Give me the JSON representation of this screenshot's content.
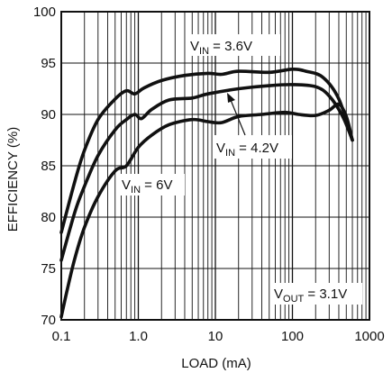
{
  "chart_data": {
    "type": "line",
    "xscale": "log",
    "xlim": [
      0.1,
      1000
    ],
    "ylim": [
      70,
      100
    ],
    "grid": true,
    "xlabel": "LOAD (mA)",
    "ylabel": "EFFICIENCY (%)",
    "xticks": [
      "0.1",
      "1.0",
      "10",
      "100",
      "1000"
    ],
    "yticks": [
      "70",
      "75",
      "80",
      "85",
      "90",
      "95",
      "100"
    ],
    "series": [
      {
        "name": "V_IN = 3.6V",
        "points": [
          [
            0.1,
            78.5
          ],
          [
            0.15,
            83.5
          ],
          [
            0.2,
            86.5
          ],
          [
            0.3,
            89.5
          ],
          [
            0.5,
            91.5
          ],
          [
            0.7,
            92.3
          ],
          [
            0.9,
            92.0
          ],
          [
            1.2,
            92.6
          ],
          [
            2,
            93.3
          ],
          [
            4,
            93.8
          ],
          [
            8,
            94.0
          ],
          [
            12,
            93.9
          ],
          [
            20,
            94.2
          ],
          [
            50,
            94.1
          ],
          [
            100,
            94.4
          ],
          [
            150,
            94.2
          ],
          [
            250,
            93.6
          ],
          [
            400,
            91.5
          ],
          [
            600,
            87.5
          ]
        ]
      },
      {
        "name": "V_IN = 4.2V",
        "points": [
          [
            0.1,
            75.8
          ],
          [
            0.15,
            80.5
          ],
          [
            0.2,
            83.0
          ],
          [
            0.3,
            86.0
          ],
          [
            0.5,
            88.5
          ],
          [
            0.7,
            89.5
          ],
          [
            0.9,
            90.0
          ],
          [
            1.1,
            89.6
          ],
          [
            1.5,
            90.5
          ],
          [
            2.5,
            91.4
          ],
          [
            5,
            91.6
          ],
          [
            8,
            92.0
          ],
          [
            20,
            92.5
          ],
          [
            50,
            92.8
          ],
          [
            100,
            92.9
          ],
          [
            200,
            92.7
          ],
          [
            300,
            91.8
          ],
          [
            450,
            89.8
          ],
          [
            600,
            87.5
          ]
        ]
      },
      {
        "name": "V_IN = 6V",
        "points": [
          [
            0.1,
            70.3
          ],
          [
            0.12,
            73.0
          ],
          [
            0.15,
            76.0
          ],
          [
            0.2,
            79.0
          ],
          [
            0.3,
            82.0
          ],
          [
            0.5,
            84.5
          ],
          [
            0.7,
            85.0
          ],
          [
            1.0,
            86.8
          ],
          [
            1.5,
            88.0
          ],
          [
            2.5,
            89.0
          ],
          [
            5,
            89.5
          ],
          [
            8,
            89.3
          ],
          [
            12,
            89.2
          ],
          [
            20,
            89.8
          ],
          [
            40,
            90.0
          ],
          [
            80,
            90.2
          ],
          [
            120,
            90.0
          ],
          [
            200,
            89.9
          ],
          [
            300,
            90.4
          ],
          [
            400,
            91.0
          ],
          [
            500,
            89.8
          ],
          [
            600,
            87.5
          ]
        ]
      }
    ],
    "annotations": [
      {
        "id": "a1",
        "main": "V",
        "sub": "IN",
        "rest": " = 3.6V"
      },
      {
        "id": "a2",
        "main": "V",
        "sub": "IN",
        "rest": " = 4.2V"
      },
      {
        "id": "a3",
        "main": "V",
        "sub": "IN",
        "rest": " = 6V"
      },
      {
        "id": "a4",
        "main": "V",
        "sub": "OUT",
        "rest": " = 3.1V"
      }
    ]
  }
}
